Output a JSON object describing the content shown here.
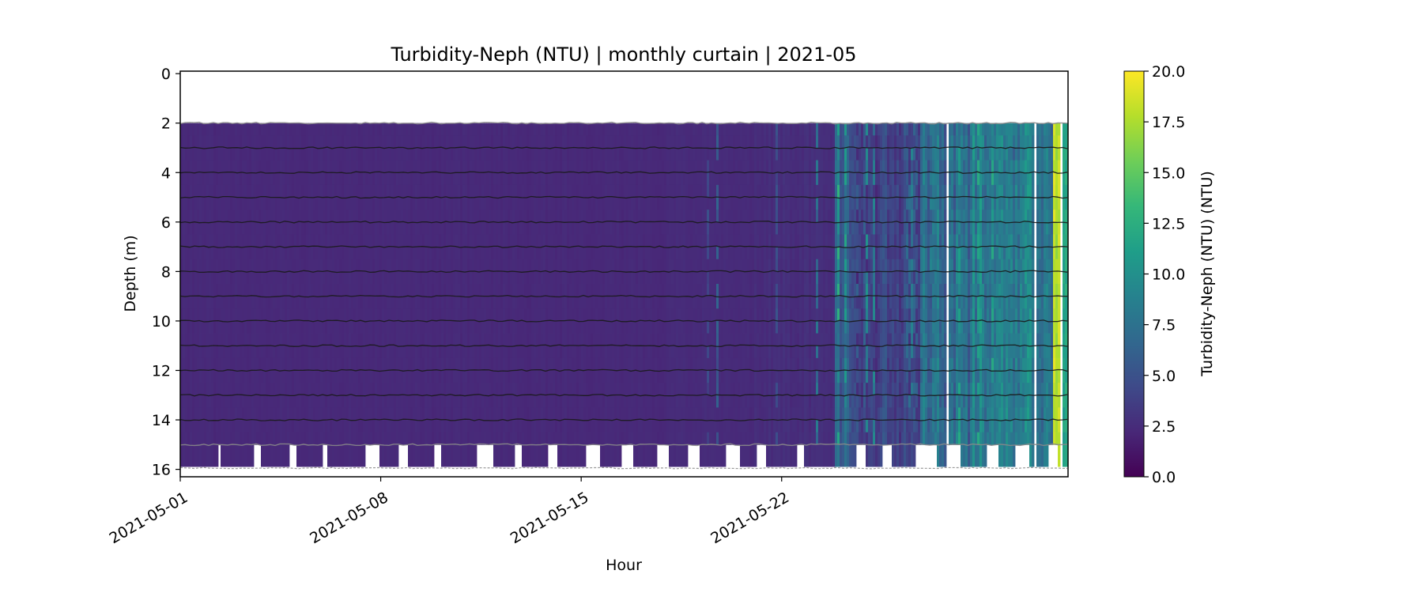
{
  "chart_data": {
    "type": "heatmap",
    "title": "Turbidity-Neph (NTU) | monthly curtain | 2021-05",
    "xlabel": "Hour",
    "ylabel": "Depth (m)",
    "colorbar_label": "Turbidity-Neph (NTU) (NTU)",
    "colormap": "viridis",
    "x_range": [
      "2021-05-01",
      "2021-06-01"
    ],
    "y_range": [
      16.3,
      -0.1
    ],
    "y_inverted": true,
    "x_ticks": [
      {
        "date": "2021-05-01",
        "label": "2021-05-01"
      },
      {
        "date": "2021-05-08",
        "label": "2021-05-08"
      },
      {
        "date": "2021-05-15",
        "label": "2021-05-15"
      },
      {
        "date": "2021-05-22",
        "label": "2021-05-22"
      }
    ],
    "y_ticks": [
      0,
      2,
      4,
      6,
      8,
      10,
      12,
      14,
      16
    ],
    "y_tick_labels": [
      "0",
      "2",
      "4",
      "6",
      "8",
      "10",
      "12",
      "14",
      "16"
    ],
    "colorbar": {
      "min": 0.0,
      "max": 20.0,
      "ticks": [
        0.0,
        2.5,
        5.0,
        7.5,
        10.0,
        12.5,
        15.0,
        17.5,
        20.0
      ],
      "tick_labels": [
        "0.0",
        "2.5",
        "5.0",
        "7.5",
        "10.0",
        "12.5",
        "15.0",
        "17.5",
        "20.0"
      ]
    },
    "sensor_depths_m": [
      2,
      3,
      4,
      5,
      6,
      7,
      8,
      9,
      10,
      11,
      12,
      13,
      14,
      15
    ],
    "profile_depth_range_m": [
      2.0,
      15.0
    ],
    "bottom_gaps": [
      [
        1.25,
        1.4
      ],
      [
        2.5,
        2.8
      ],
      [
        3.8,
        4.05
      ],
      [
        4.9,
        5.1
      ],
      [
        6.4,
        6.9
      ],
      [
        7.6,
        7.9
      ],
      [
        8.8,
        9.1
      ],
      [
        10.3,
        10.9
      ],
      [
        11.6,
        11.9
      ],
      [
        12.8,
        13.1
      ],
      [
        14.1,
        14.6
      ],
      [
        15.4,
        15.8
      ],
      [
        16.6,
        17.0
      ],
      [
        17.7,
        18.1
      ],
      [
        19.0,
        19.5
      ],
      [
        20.1,
        20.4
      ],
      [
        21.5,
        21.7
      ],
      [
        23.6,
        23.9
      ],
      [
        24.5,
        24.8
      ],
      [
        25.6,
        26.4
      ],
      [
        26.8,
        27.2
      ],
      [
        28.1,
        28.5
      ],
      [
        29.1,
        29.6
      ],
      [
        30.3,
        30.6
      ]
    ],
    "white_gaps": [
      [
        26.7,
        26.75
      ],
      [
        29.8,
        29.85
      ],
      [
        30.65,
        30.78
      ]
    ],
    "colormap_stops": [
      "#440154",
      "#482878",
      "#3e4a89",
      "#31688e",
      "#26828e",
      "#1f9e89",
      "#35b779",
      "#6ece58",
      "#b5de2b",
      "#fde725"
    ],
    "segments": [
      {
        "start": 0.0,
        "end": 17.0,
        "base": 2.3,
        "var": 0.25,
        "spike_rate": 0.0,
        "spike_max": 0.0
      },
      {
        "start": 17.0,
        "end": 20.0,
        "base": 2.4,
        "var": 0.3,
        "spike_rate": 0.04,
        "spike_max": 8.0
      },
      {
        "start": 20.0,
        "end": 22.8,
        "base": 2.6,
        "var": 0.5,
        "spike_rate": 0.07,
        "spike_max": 9.0
      },
      {
        "start": 22.8,
        "end": 23.3,
        "base": 6.5,
        "var": 3.0,
        "spike_rate": 0.3,
        "spike_max": 14.0
      },
      {
        "start": 23.3,
        "end": 25.8,
        "base": 4.0,
        "var": 2.5,
        "spike_rate": 0.18,
        "spike_max": 11.0
      },
      {
        "start": 25.8,
        "end": 27.5,
        "base": 7.0,
        "var": 3.5,
        "spike_rate": 0.3,
        "spike_max": 14.0
      },
      {
        "start": 27.5,
        "end": 29.9,
        "base": 8.5,
        "var": 4.0,
        "spike_rate": 0.35,
        "spike_max": 15.0
      },
      {
        "start": 29.9,
        "end": 30.45,
        "base": 8.0,
        "var": 3.0,
        "spike_rate": 0.2,
        "spike_max": 12.0
      },
      {
        "start": 30.45,
        "end": 30.65,
        "base": 17.0,
        "var": 3.0,
        "spike_rate": 0.5,
        "spike_max": 19.5
      },
      {
        "start": 30.78,
        "end": 31.0,
        "base": 13.0,
        "var": 3.0,
        "spike_rate": 0.3,
        "spike_max": 17.0
      }
    ]
  }
}
